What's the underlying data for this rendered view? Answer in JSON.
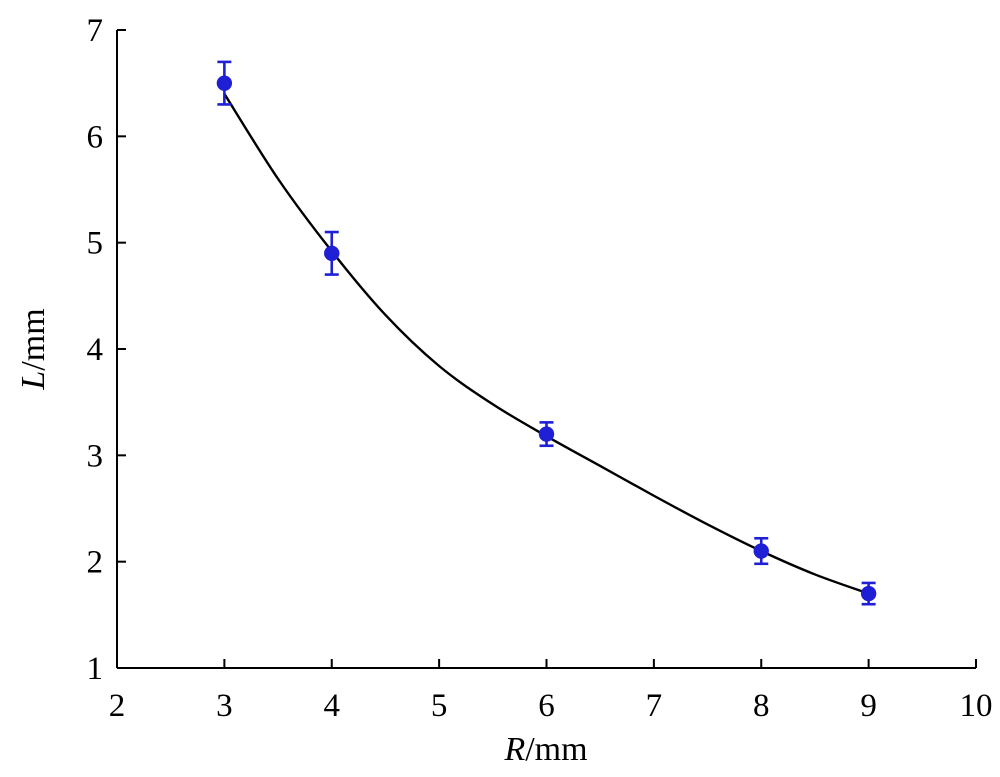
{
  "chart_data": {
    "type": "scatter",
    "title": "",
    "xlabel": {
      "var": "R",
      "unit": "/mm"
    },
    "ylabel": {
      "var": "L",
      "unit": "/mm"
    },
    "xlim": [
      2,
      10
    ],
    "ylim": [
      1,
      7
    ],
    "xticks": [
      2,
      3,
      4,
      5,
      6,
      7,
      8,
      9,
      10
    ],
    "yticks": [
      1,
      2,
      3,
      4,
      5,
      6,
      7
    ],
    "grid": false,
    "legend": "none",
    "series": [
      {
        "color": "#1f1fd6",
        "marker": "circle",
        "points": [
          {
            "x": 3,
            "y": 6.5,
            "err": 0.2
          },
          {
            "x": 4,
            "y": 4.9,
            "err": 0.2
          },
          {
            "x": 6,
            "y": 3.2,
            "err": 0.11
          },
          {
            "x": 8,
            "y": 2.1,
            "err": 0.12
          },
          {
            "x": 9,
            "y": 1.7,
            "err": 0.1
          }
        ]
      }
    ],
    "fit_curve": {
      "color": "#000000",
      "x": [
        3,
        3.5,
        4,
        4.5,
        5,
        5.5,
        6,
        6.5,
        7,
        7.5,
        8,
        8.5,
        9
      ],
      "y": [
        6.4,
        5.6,
        4.92,
        4.32,
        3.84,
        3.48,
        3.18,
        2.9,
        2.62,
        2.35,
        2.1,
        1.88,
        1.7
      ]
    }
  }
}
